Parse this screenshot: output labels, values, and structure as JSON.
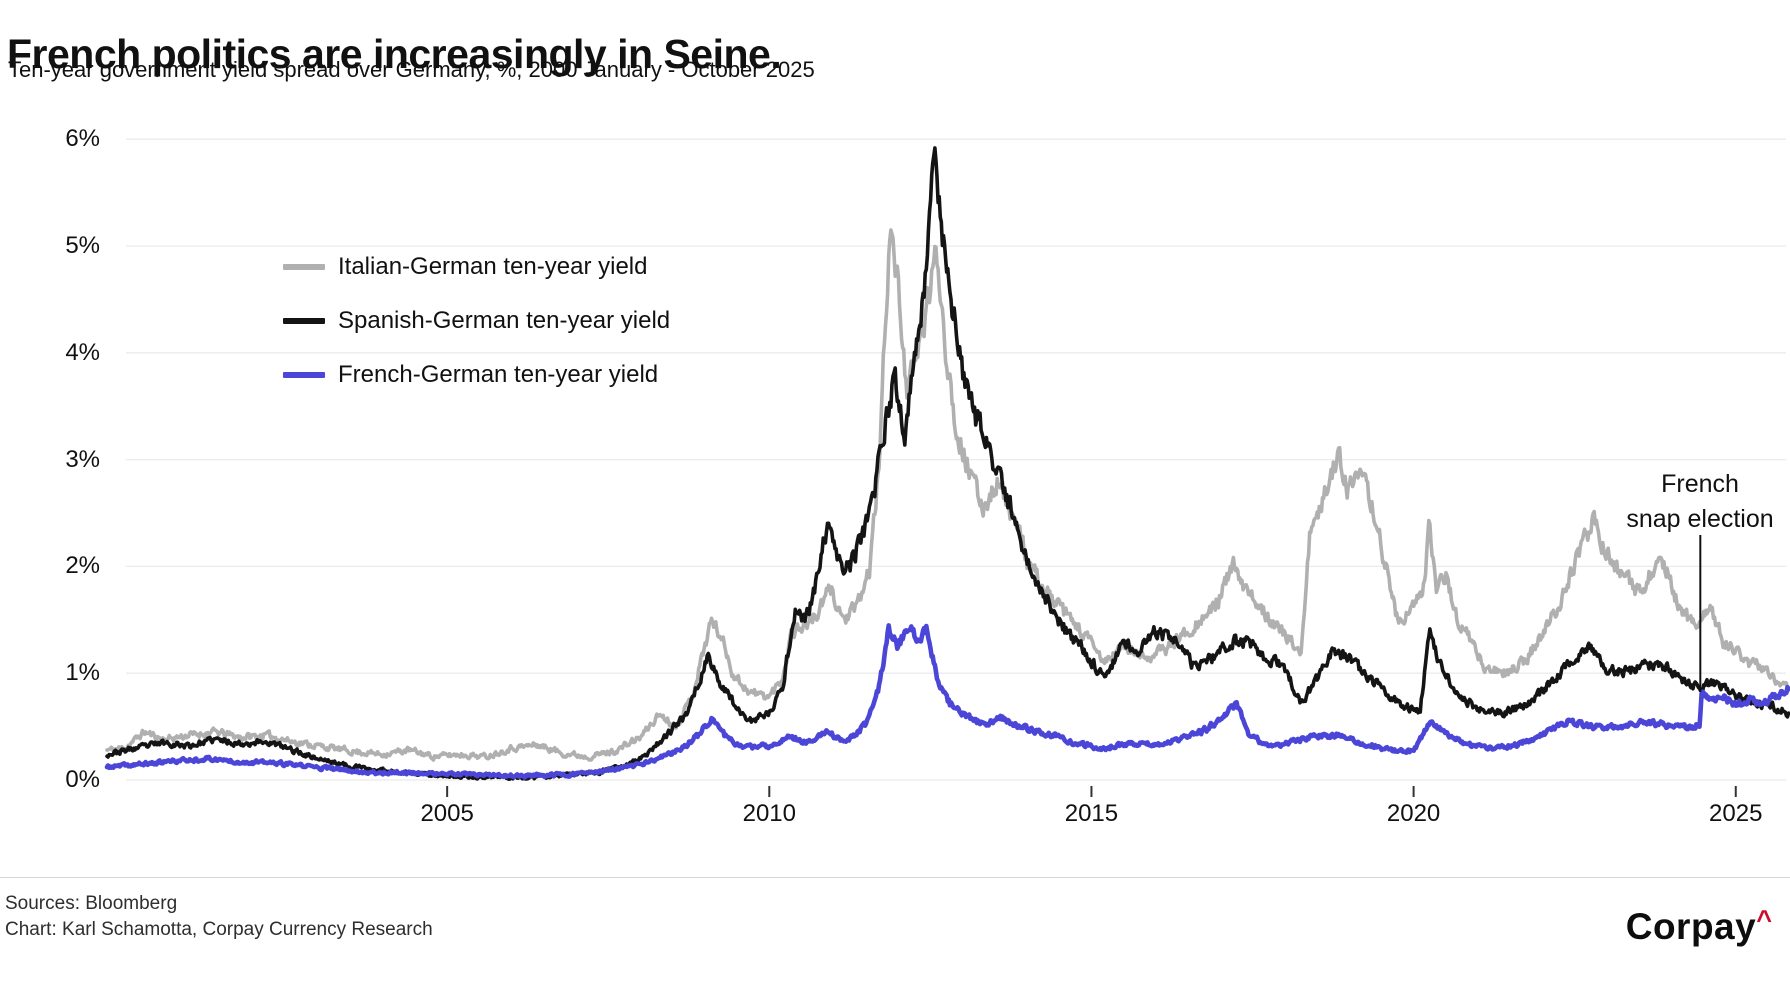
{
  "header": {
    "title": "French politics are increasingly in Seine.",
    "subtitle": "Ten-year government yield spread over Germany, %, 2000 January - October 2025"
  },
  "legend": {
    "items": [
      {
        "label": "Italian-German ten-year yield",
        "color": "#b0b0b0"
      },
      {
        "label": "Spanish-German ten-year yield",
        "color": "#141414"
      },
      {
        "label": "French-German ten-year yield",
        "color": "#4b46d7"
      }
    ]
  },
  "axes": {
    "y_ticks": [
      {
        "label": "6%",
        "value": 6
      },
      {
        "label": "5%",
        "value": 5
      },
      {
        "label": "4%",
        "value": 4
      },
      {
        "label": "3%",
        "value": 3
      },
      {
        "label": "2%",
        "value": 2
      },
      {
        "label": "1%",
        "value": 1
      },
      {
        "label": "0%",
        "value": 0
      }
    ],
    "x_ticks": [
      {
        "label": "2005",
        "value": 2005
      },
      {
        "label": "2010",
        "value": 2010
      },
      {
        "label": "2015",
        "value": 2015
      },
      {
        "label": "2020",
        "value": 2020
      },
      {
        "label": "2025",
        "value": 2025
      }
    ]
  },
  "annotation": {
    "line1": "French",
    "line2": "snap election",
    "x_year": 2024.45
  },
  "footer": {
    "sources": "Sources: Bloomberg",
    "credit": "Chart: Karl Schamotta, Corpay Currency Research",
    "logo_text": "Corpay",
    "logo_caret": "^",
    "logo_caret_color": "#c8102e"
  },
  "chart_data": {
    "type": "line",
    "title": "French politics are increasingly in Seine.",
    "subtitle": "Ten-year government yield spread over Germany, %, 2000 January - October 2025",
    "x_range": [
      2000,
      2025.83
    ],
    "y_range": [
      0,
      6
    ],
    "y_unit": "%",
    "grid": "horizontal",
    "legend_position": "upper-left-inside",
    "annotation": {
      "label": "French snap election",
      "x": 2024.45
    },
    "series": [
      {
        "name": "Italian-German ten-year yield",
        "color": "#b0b0b0",
        "points": [
          [
            1999.72,
            0.28
          ],
          [
            2000.0,
            0.3
          ],
          [
            2000.3,
            0.45
          ],
          [
            2000.6,
            0.38
          ],
          [
            2001.0,
            0.42
          ],
          [
            2001.4,
            0.45
          ],
          [
            2001.8,
            0.4
          ],
          [
            2002.2,
            0.42
          ],
          [
            2002.6,
            0.36
          ],
          [
            2003.0,
            0.32
          ],
          [
            2003.5,
            0.27
          ],
          [
            2004.0,
            0.24
          ],
          [
            2004.4,
            0.28
          ],
          [
            2004.8,
            0.22
          ],
          [
            2005.2,
            0.24
          ],
          [
            2005.6,
            0.22
          ],
          [
            2006.0,
            0.3
          ],
          [
            2006.4,
            0.33
          ],
          [
            2006.8,
            0.25
          ],
          [
            2007.2,
            0.22
          ],
          [
            2007.6,
            0.27
          ],
          [
            2008.0,
            0.4
          ],
          [
            2008.3,
            0.62
          ],
          [
            2008.55,
            0.5
          ],
          [
            2008.8,
            0.78
          ],
          [
            2009.1,
            1.5
          ],
          [
            2009.25,
            1.35
          ],
          [
            2009.45,
            0.98
          ],
          [
            2009.7,
            0.82
          ],
          [
            2010.0,
            0.78
          ],
          [
            2010.2,
            0.95
          ],
          [
            2010.35,
            1.4
          ],
          [
            2010.55,
            1.45
          ],
          [
            2010.75,
            1.55
          ],
          [
            2010.95,
            1.8
          ],
          [
            2011.15,
            1.5
          ],
          [
            2011.35,
            1.6
          ],
          [
            2011.55,
            1.95
          ],
          [
            2011.7,
            2.9
          ],
          [
            2011.87,
            5.2
          ],
          [
            2012.0,
            4.6
          ],
          [
            2012.15,
            3.6
          ],
          [
            2012.3,
            4.0
          ],
          [
            2012.45,
            4.45
          ],
          [
            2012.6,
            4.95
          ],
          [
            2012.75,
            4.0
          ],
          [
            2012.9,
            3.3
          ],
          [
            2013.1,
            2.9
          ],
          [
            2013.3,
            2.55
          ],
          [
            2013.55,
            2.8
          ],
          [
            2013.8,
            2.45
          ],
          [
            2014.0,
            2.05
          ],
          [
            2014.3,
            1.75
          ],
          [
            2014.6,
            1.55
          ],
          [
            2014.9,
            1.35
          ],
          [
            2015.2,
            1.1
          ],
          [
            2015.5,
            1.25
          ],
          [
            2015.8,
            1.15
          ],
          [
            2016.1,
            1.2
          ],
          [
            2016.4,
            1.35
          ],
          [
            2016.7,
            1.5
          ],
          [
            2016.9,
            1.6
          ],
          [
            2017.2,
            2.0
          ],
          [
            2017.4,
            1.75
          ],
          [
            2017.6,
            1.65
          ],
          [
            2017.8,
            1.5
          ],
          [
            2018.0,
            1.35
          ],
          [
            2018.25,
            1.2
          ],
          [
            2018.4,
            2.35
          ],
          [
            2018.55,
            2.5
          ],
          [
            2018.7,
            2.85
          ],
          [
            2018.85,
            3.05
          ],
          [
            2019.0,
            2.7
          ],
          [
            2019.15,
            2.85
          ],
          [
            2019.35,
            2.6
          ],
          [
            2019.55,
            2.05
          ],
          [
            2019.75,
            1.5
          ],
          [
            2019.95,
            1.55
          ],
          [
            2020.15,
            1.8
          ],
          [
            2020.25,
            2.4
          ],
          [
            2020.35,
            1.75
          ],
          [
            2020.5,
            1.95
          ],
          [
            2020.65,
            1.55
          ],
          [
            2020.85,
            1.35
          ],
          [
            2021.1,
            1.05
          ],
          [
            2021.4,
            1.0
          ],
          [
            2021.7,
            1.1
          ],
          [
            2022.0,
            1.35
          ],
          [
            2022.3,
            1.7
          ],
          [
            2022.55,
            2.1
          ],
          [
            2022.8,
            2.45
          ],
          [
            2023.0,
            2.1
          ],
          [
            2023.25,
            1.9
          ],
          [
            2023.5,
            1.75
          ],
          [
            2023.75,
            2.0
          ],
          [
            2023.95,
            1.95
          ],
          [
            2024.15,
            1.55
          ],
          [
            2024.45,
            1.45
          ],
          [
            2024.6,
            1.65
          ],
          [
            2024.8,
            1.3
          ],
          [
            2025.0,
            1.2
          ],
          [
            2025.2,
            1.1
          ],
          [
            2025.45,
            1.05
          ],
          [
            2025.65,
            0.92
          ],
          [
            2025.83,
            0.87
          ]
        ]
      },
      {
        "name": "Spanish-German ten-year yield",
        "color": "#141414",
        "points": [
          [
            1999.72,
            0.24
          ],
          [
            2000.2,
            0.3
          ],
          [
            2000.6,
            0.35
          ],
          [
            2001.0,
            0.32
          ],
          [
            2001.4,
            0.38
          ],
          [
            2001.8,
            0.34
          ],
          [
            2002.2,
            0.36
          ],
          [
            2002.6,
            0.28
          ],
          [
            2003.0,
            0.2
          ],
          [
            2003.4,
            0.14
          ],
          [
            2003.8,
            0.1
          ],
          [
            2004.2,
            0.08
          ],
          [
            2004.6,
            0.06
          ],
          [
            2005.0,
            0.04
          ],
          [
            2005.4,
            0.02
          ],
          [
            2005.8,
            0.03
          ],
          [
            2006.2,
            0.02
          ],
          [
            2006.6,
            0.03
          ],
          [
            2007.0,
            0.06
          ],
          [
            2007.4,
            0.08
          ],
          [
            2007.8,
            0.14
          ],
          [
            2008.1,
            0.25
          ],
          [
            2008.4,
            0.42
          ],
          [
            2008.7,
            0.6
          ],
          [
            2009.05,
            1.15
          ],
          [
            2009.2,
            0.95
          ],
          [
            2009.45,
            0.72
          ],
          [
            2009.7,
            0.55
          ],
          [
            2010.0,
            0.62
          ],
          [
            2010.2,
            0.85
          ],
          [
            2010.4,
            1.6
          ],
          [
            2010.55,
            1.5
          ],
          [
            2010.7,
            1.75
          ],
          [
            2010.9,
            2.4
          ],
          [
            2011.05,
            2.05
          ],
          [
            2011.25,
            2.0
          ],
          [
            2011.45,
            2.3
          ],
          [
            2011.6,
            2.55
          ],
          [
            2011.75,
            3.2
          ],
          [
            2011.95,
            3.75
          ],
          [
            2012.1,
            3.25
          ],
          [
            2012.3,
            4.1
          ],
          [
            2012.45,
            4.9
          ],
          [
            2012.55,
            6.05
          ],
          [
            2012.65,
            5.3
          ],
          [
            2012.8,
            4.6
          ],
          [
            2012.95,
            4.0
          ],
          [
            2013.1,
            3.5
          ],
          [
            2013.3,
            3.3
          ],
          [
            2013.5,
            2.9
          ],
          [
            2013.75,
            2.55
          ],
          [
            2014.0,
            2.05
          ],
          [
            2014.3,
            1.7
          ],
          [
            2014.6,
            1.4
          ],
          [
            2014.9,
            1.2
          ],
          [
            2015.2,
            0.95
          ],
          [
            2015.5,
            1.3
          ],
          [
            2015.75,
            1.2
          ],
          [
            2016.0,
            1.4
          ],
          [
            2016.3,
            1.3
          ],
          [
            2016.6,
            1.05
          ],
          [
            2016.9,
            1.15
          ],
          [
            2017.2,
            1.3
          ],
          [
            2017.45,
            1.3
          ],
          [
            2017.7,
            1.15
          ],
          [
            2018.0,
            1.05
          ],
          [
            2018.25,
            0.72
          ],
          [
            2018.5,
            0.95
          ],
          [
            2018.75,
            1.2
          ],
          [
            2019.0,
            1.15
          ],
          [
            2019.3,
            0.95
          ],
          [
            2019.6,
            0.8
          ],
          [
            2019.9,
            0.68
          ],
          [
            2020.1,
            0.65
          ],
          [
            2020.25,
            1.42
          ],
          [
            2020.4,
            1.1
          ],
          [
            2020.6,
            0.88
          ],
          [
            2020.9,
            0.7
          ],
          [
            2021.2,
            0.62
          ],
          [
            2021.5,
            0.65
          ],
          [
            2021.8,
            0.72
          ],
          [
            2022.1,
            0.9
          ],
          [
            2022.4,
            1.08
          ],
          [
            2022.75,
            1.28
          ],
          [
            2023.0,
            1.05
          ],
          [
            2023.3,
            1.02
          ],
          [
            2023.6,
            1.08
          ],
          [
            2023.9,
            1.08
          ],
          [
            2024.15,
            0.92
          ],
          [
            2024.45,
            0.88
          ],
          [
            2024.65,
            0.92
          ],
          [
            2024.9,
            0.82
          ],
          [
            2025.1,
            0.78
          ],
          [
            2025.35,
            0.72
          ],
          [
            2025.6,
            0.68
          ],
          [
            2025.83,
            0.62
          ]
        ]
      },
      {
        "name": "French-German ten-year yield",
        "color": "#4b46d7",
        "points": [
          [
            1999.72,
            0.12
          ],
          [
            2000.3,
            0.15
          ],
          [
            2000.8,
            0.18
          ],
          [
            2001.3,
            0.2
          ],
          [
            2001.8,
            0.17
          ],
          [
            2002.3,
            0.16
          ],
          [
            2002.8,
            0.13
          ],
          [
            2003.3,
            0.1
          ],
          [
            2003.8,
            0.07
          ],
          [
            2004.3,
            0.07
          ],
          [
            2004.8,
            0.06
          ],
          [
            2005.3,
            0.05
          ],
          [
            2005.8,
            0.04
          ],
          [
            2006.3,
            0.04
          ],
          [
            2006.8,
            0.05
          ],
          [
            2007.3,
            0.07
          ],
          [
            2007.8,
            0.12
          ],
          [
            2008.2,
            0.18
          ],
          [
            2008.6,
            0.28
          ],
          [
            2008.9,
            0.42
          ],
          [
            2009.1,
            0.58
          ],
          [
            2009.3,
            0.42
          ],
          [
            2009.6,
            0.3
          ],
          [
            2010.0,
            0.32
          ],
          [
            2010.3,
            0.4
          ],
          [
            2010.6,
            0.36
          ],
          [
            2010.9,
            0.44
          ],
          [
            2011.2,
            0.36
          ],
          [
            2011.5,
            0.52
          ],
          [
            2011.7,
            0.85
          ],
          [
            2011.85,
            1.42
          ],
          [
            2012.0,
            1.25
          ],
          [
            2012.15,
            1.45
          ],
          [
            2012.3,
            1.3
          ],
          [
            2012.45,
            1.42
          ],
          [
            2012.6,
            0.95
          ],
          [
            2012.8,
            0.72
          ],
          [
            2013.0,
            0.62
          ],
          [
            2013.3,
            0.52
          ],
          [
            2013.6,
            0.58
          ],
          [
            2014.0,
            0.48
          ],
          [
            2014.4,
            0.42
          ],
          [
            2014.8,
            0.33
          ],
          [
            2015.2,
            0.3
          ],
          [
            2015.6,
            0.34
          ],
          [
            2016.0,
            0.33
          ],
          [
            2016.4,
            0.38
          ],
          [
            2016.8,
            0.48
          ],
          [
            2017.1,
            0.62
          ],
          [
            2017.25,
            0.72
          ],
          [
            2017.45,
            0.42
          ],
          [
            2017.7,
            0.33
          ],
          [
            2018.0,
            0.34
          ],
          [
            2018.4,
            0.4
          ],
          [
            2018.8,
            0.42
          ],
          [
            2019.2,
            0.34
          ],
          [
            2019.6,
            0.29
          ],
          [
            2020.0,
            0.27
          ],
          [
            2020.25,
            0.54
          ],
          [
            2020.5,
            0.44
          ],
          [
            2020.8,
            0.33
          ],
          [
            2021.2,
            0.3
          ],
          [
            2021.6,
            0.33
          ],
          [
            2022.0,
            0.42
          ],
          [
            2022.4,
            0.55
          ],
          [
            2022.8,
            0.5
          ],
          [
            2023.2,
            0.5
          ],
          [
            2023.6,
            0.55
          ],
          [
            2024.0,
            0.5
          ],
          [
            2024.3,
            0.49
          ],
          [
            2024.44,
            0.52
          ],
          [
            2024.47,
            0.8
          ],
          [
            2024.6,
            0.74
          ],
          [
            2024.8,
            0.78
          ],
          [
            2025.0,
            0.71
          ],
          [
            2025.2,
            0.75
          ],
          [
            2025.4,
            0.7
          ],
          [
            2025.6,
            0.78
          ],
          [
            2025.83,
            0.86
          ]
        ]
      }
    ]
  }
}
